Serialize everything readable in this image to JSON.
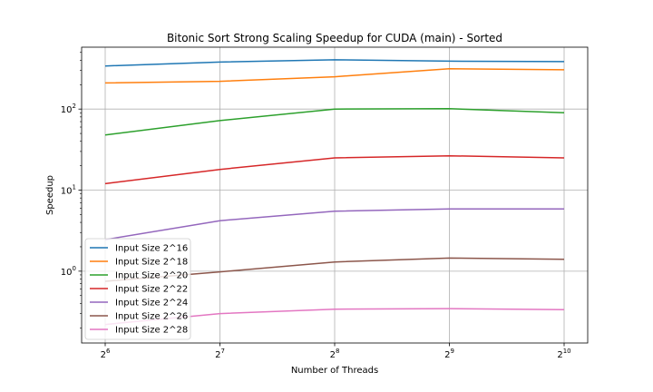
{
  "chart_data": {
    "type": "line",
    "title": "Bitonic Sort Strong Scaling Speedup for CUDA (main) - Sorted",
    "xlabel": "Number of Threads",
    "ylabel": "Speedup",
    "x_scale": "log2",
    "y_scale": "log10",
    "x": [
      64,
      128,
      256,
      512,
      1024
    ],
    "x_tick_labels": [
      {
        "base": "2",
        "exp": "6"
      },
      {
        "base": "2",
        "exp": "7"
      },
      {
        "base": "2",
        "exp": "8"
      },
      {
        "base": "2",
        "exp": "9"
      },
      {
        "base": "2",
        "exp": "10"
      }
    ],
    "y_ticks": [
      {
        "value": 1,
        "base": "10",
        "exp": "0"
      },
      {
        "value": 10,
        "base": "10",
        "exp": "1"
      },
      {
        "value": 100,
        "base": "10",
        "exp": "2"
      }
    ],
    "ylim": [
      0.13,
      580
    ],
    "grid": true,
    "legend_position": "lower-left",
    "series": [
      {
        "name": "Input Size 2^16",
        "color": "#1f77b4",
        "values": [
          340,
          380,
          405,
          390,
          385
        ]
      },
      {
        "name": "Input Size 2^18",
        "color": "#ff7f0e",
        "values": [
          210,
          220,
          250,
          315,
          305
        ]
      },
      {
        "name": "Input Size 2^20",
        "color": "#2ca02c",
        "values": [
          48,
          72,
          100,
          101,
          90
        ]
      },
      {
        "name": "Input Size 2^22",
        "color": "#d62728",
        "values": [
          12,
          18,
          25,
          26.5,
          25
        ]
      },
      {
        "name": "Input Size 2^24",
        "color": "#9467bd",
        "values": [
          2.45,
          4.2,
          5.5,
          5.85,
          5.85
        ]
      },
      {
        "name": "Input Size 2^26",
        "color": "#8c564b",
        "values": [
          0.75,
          0.98,
          1.3,
          1.45,
          1.4
        ]
      },
      {
        "name": "Input Size 2^28",
        "color": "#e377c2",
        "values": [
          0.22,
          0.3,
          0.34,
          0.345,
          0.335
        ]
      }
    ]
  }
}
